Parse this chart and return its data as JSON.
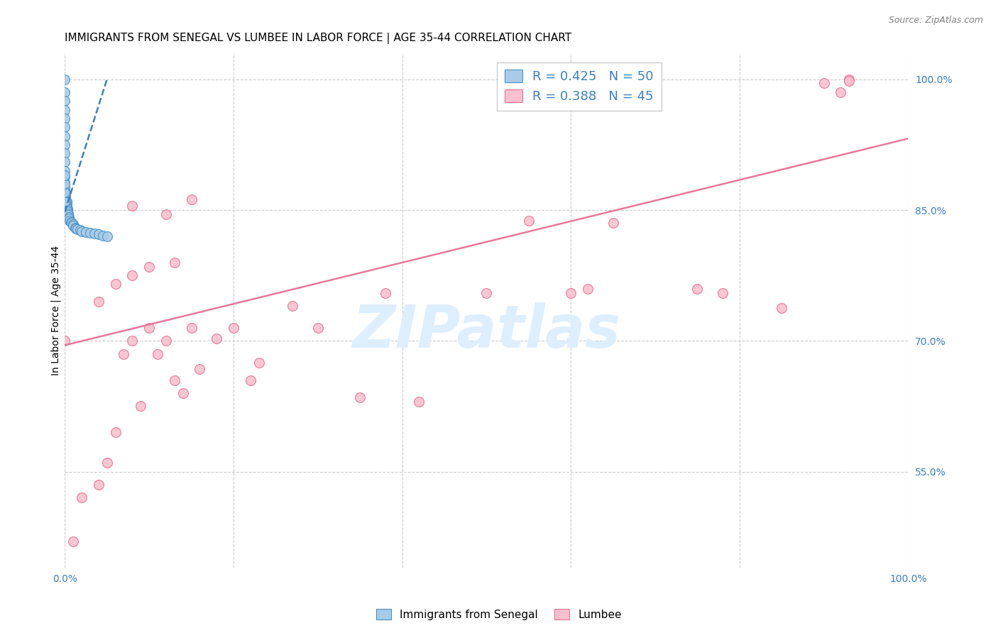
{
  "title": "IMMIGRANTS FROM SENEGAL VS LUMBEE IN LABOR FORCE | AGE 35-44 CORRELATION CHART",
  "source": "Source: ZipAtlas.com",
  "ylabel": "In Labor Force | Age 35-44",
  "xlim": [
    0.0,
    1.0
  ],
  "ylim": [
    0.44,
    1.03
  ],
  "x_ticks": [
    0.0,
    0.2,
    0.4,
    0.6,
    0.8,
    1.0
  ],
  "y_ticks_right": [
    0.55,
    0.7,
    0.85,
    1.0
  ],
  "y_tick_labels_right": [
    "55.0%",
    "70.0%",
    "85.0%",
    "100.0%"
  ],
  "blue_color": "#a8cce8",
  "pink_color": "#f9c0d0",
  "blue_edge_color": "#4a90c4",
  "pink_edge_color": "#e87090",
  "blue_line_color": "#3a7fc1",
  "pink_line_color": "#e8789a",
  "grid_color": "#cccccc",
  "watermark_text": "ZIPatlas",
  "watermark_color": "#ddeeff",
  "legend_color": "#3a7fc1",
  "blue_R": 0.425,
  "blue_N": 50,
  "pink_R": 0.388,
  "pink_N": 45,
  "blue_scatter_x": [
    0.0,
    0.0,
    0.0,
    0.0,
    0.0,
    0.0,
    0.0,
    0.0,
    0.0,
    0.0,
    0.0,
    0.0,
    0.0,
    0.0,
    0.001,
    0.001,
    0.001,
    0.001,
    0.001,
    0.002,
    0.002,
    0.002,
    0.002,
    0.003,
    0.003,
    0.003,
    0.004,
    0.004,
    0.005,
    0.005,
    0.006,
    0.007,
    0.008,
    0.01,
    0.01,
    0.012,
    0.013,
    0.015,
    0.018,
    0.02,
    0.025,
    0.03,
    0.035,
    0.04,
    0.045,
    0.05,
    0.0,
    0.0,
    0.0,
    0.0
  ],
  "blue_scatter_y": [
    1.0,
    0.985,
    0.975,
    0.965,
    0.955,
    0.945,
    0.935,
    0.925,
    0.915,
    0.905,
    0.895,
    0.888,
    0.882,
    0.876,
    0.87,
    0.868,
    0.866,
    0.864,
    0.862,
    0.86,
    0.858,
    0.856,
    0.854,
    0.852,
    0.85,
    0.848,
    0.846,
    0.844,
    0.842,
    0.84,
    0.838,
    0.836,
    0.835,
    0.834,
    0.832,
    0.83,
    0.829,
    0.828,
    0.827,
    0.826,
    0.825,
    0.824,
    0.823,
    0.822,
    0.821,
    0.82,
    0.86,
    0.87,
    0.88,
    0.89
  ],
  "pink_scatter_x": [
    0.0,
    0.01,
    0.02,
    0.04,
    0.04,
    0.05,
    0.06,
    0.06,
    0.07,
    0.08,
    0.08,
    0.09,
    0.1,
    0.1,
    0.11,
    0.12,
    0.13,
    0.13,
    0.14,
    0.15,
    0.16,
    0.18,
    0.2,
    0.22,
    0.23,
    0.27,
    0.3,
    0.35,
    0.38,
    0.42,
    0.5,
    0.55,
    0.6,
    0.62,
    0.65,
    0.75,
    0.78,
    0.85,
    0.9,
    0.92,
    0.93,
    0.93,
    0.15,
    0.08,
    0.12
  ],
  "pink_scatter_y": [
    0.7,
    0.47,
    0.52,
    0.535,
    0.745,
    0.56,
    0.595,
    0.765,
    0.685,
    0.7,
    0.775,
    0.625,
    0.715,
    0.785,
    0.685,
    0.7,
    0.655,
    0.79,
    0.64,
    0.715,
    0.668,
    0.703,
    0.715,
    0.655,
    0.675,
    0.74,
    0.715,
    0.635,
    0.755,
    0.63,
    0.755,
    0.838,
    0.755,
    0.76,
    0.835,
    0.76,
    0.755,
    0.738,
    0.996,
    0.985,
    1.0,
    0.998,
    0.862,
    0.855,
    0.845
  ],
  "blue_line_x": [
    0.0,
    0.05
  ],
  "blue_line_y": [
    0.848,
    1.0
  ],
  "pink_line_x": [
    0.0,
    1.0
  ],
  "pink_line_y": [
    0.695,
    0.932
  ],
  "title_fontsize": 11,
  "source_fontsize": 9,
  "label_fontsize": 10,
  "tick_fontsize": 10,
  "legend_fontsize": 13,
  "dot_size": 100
}
